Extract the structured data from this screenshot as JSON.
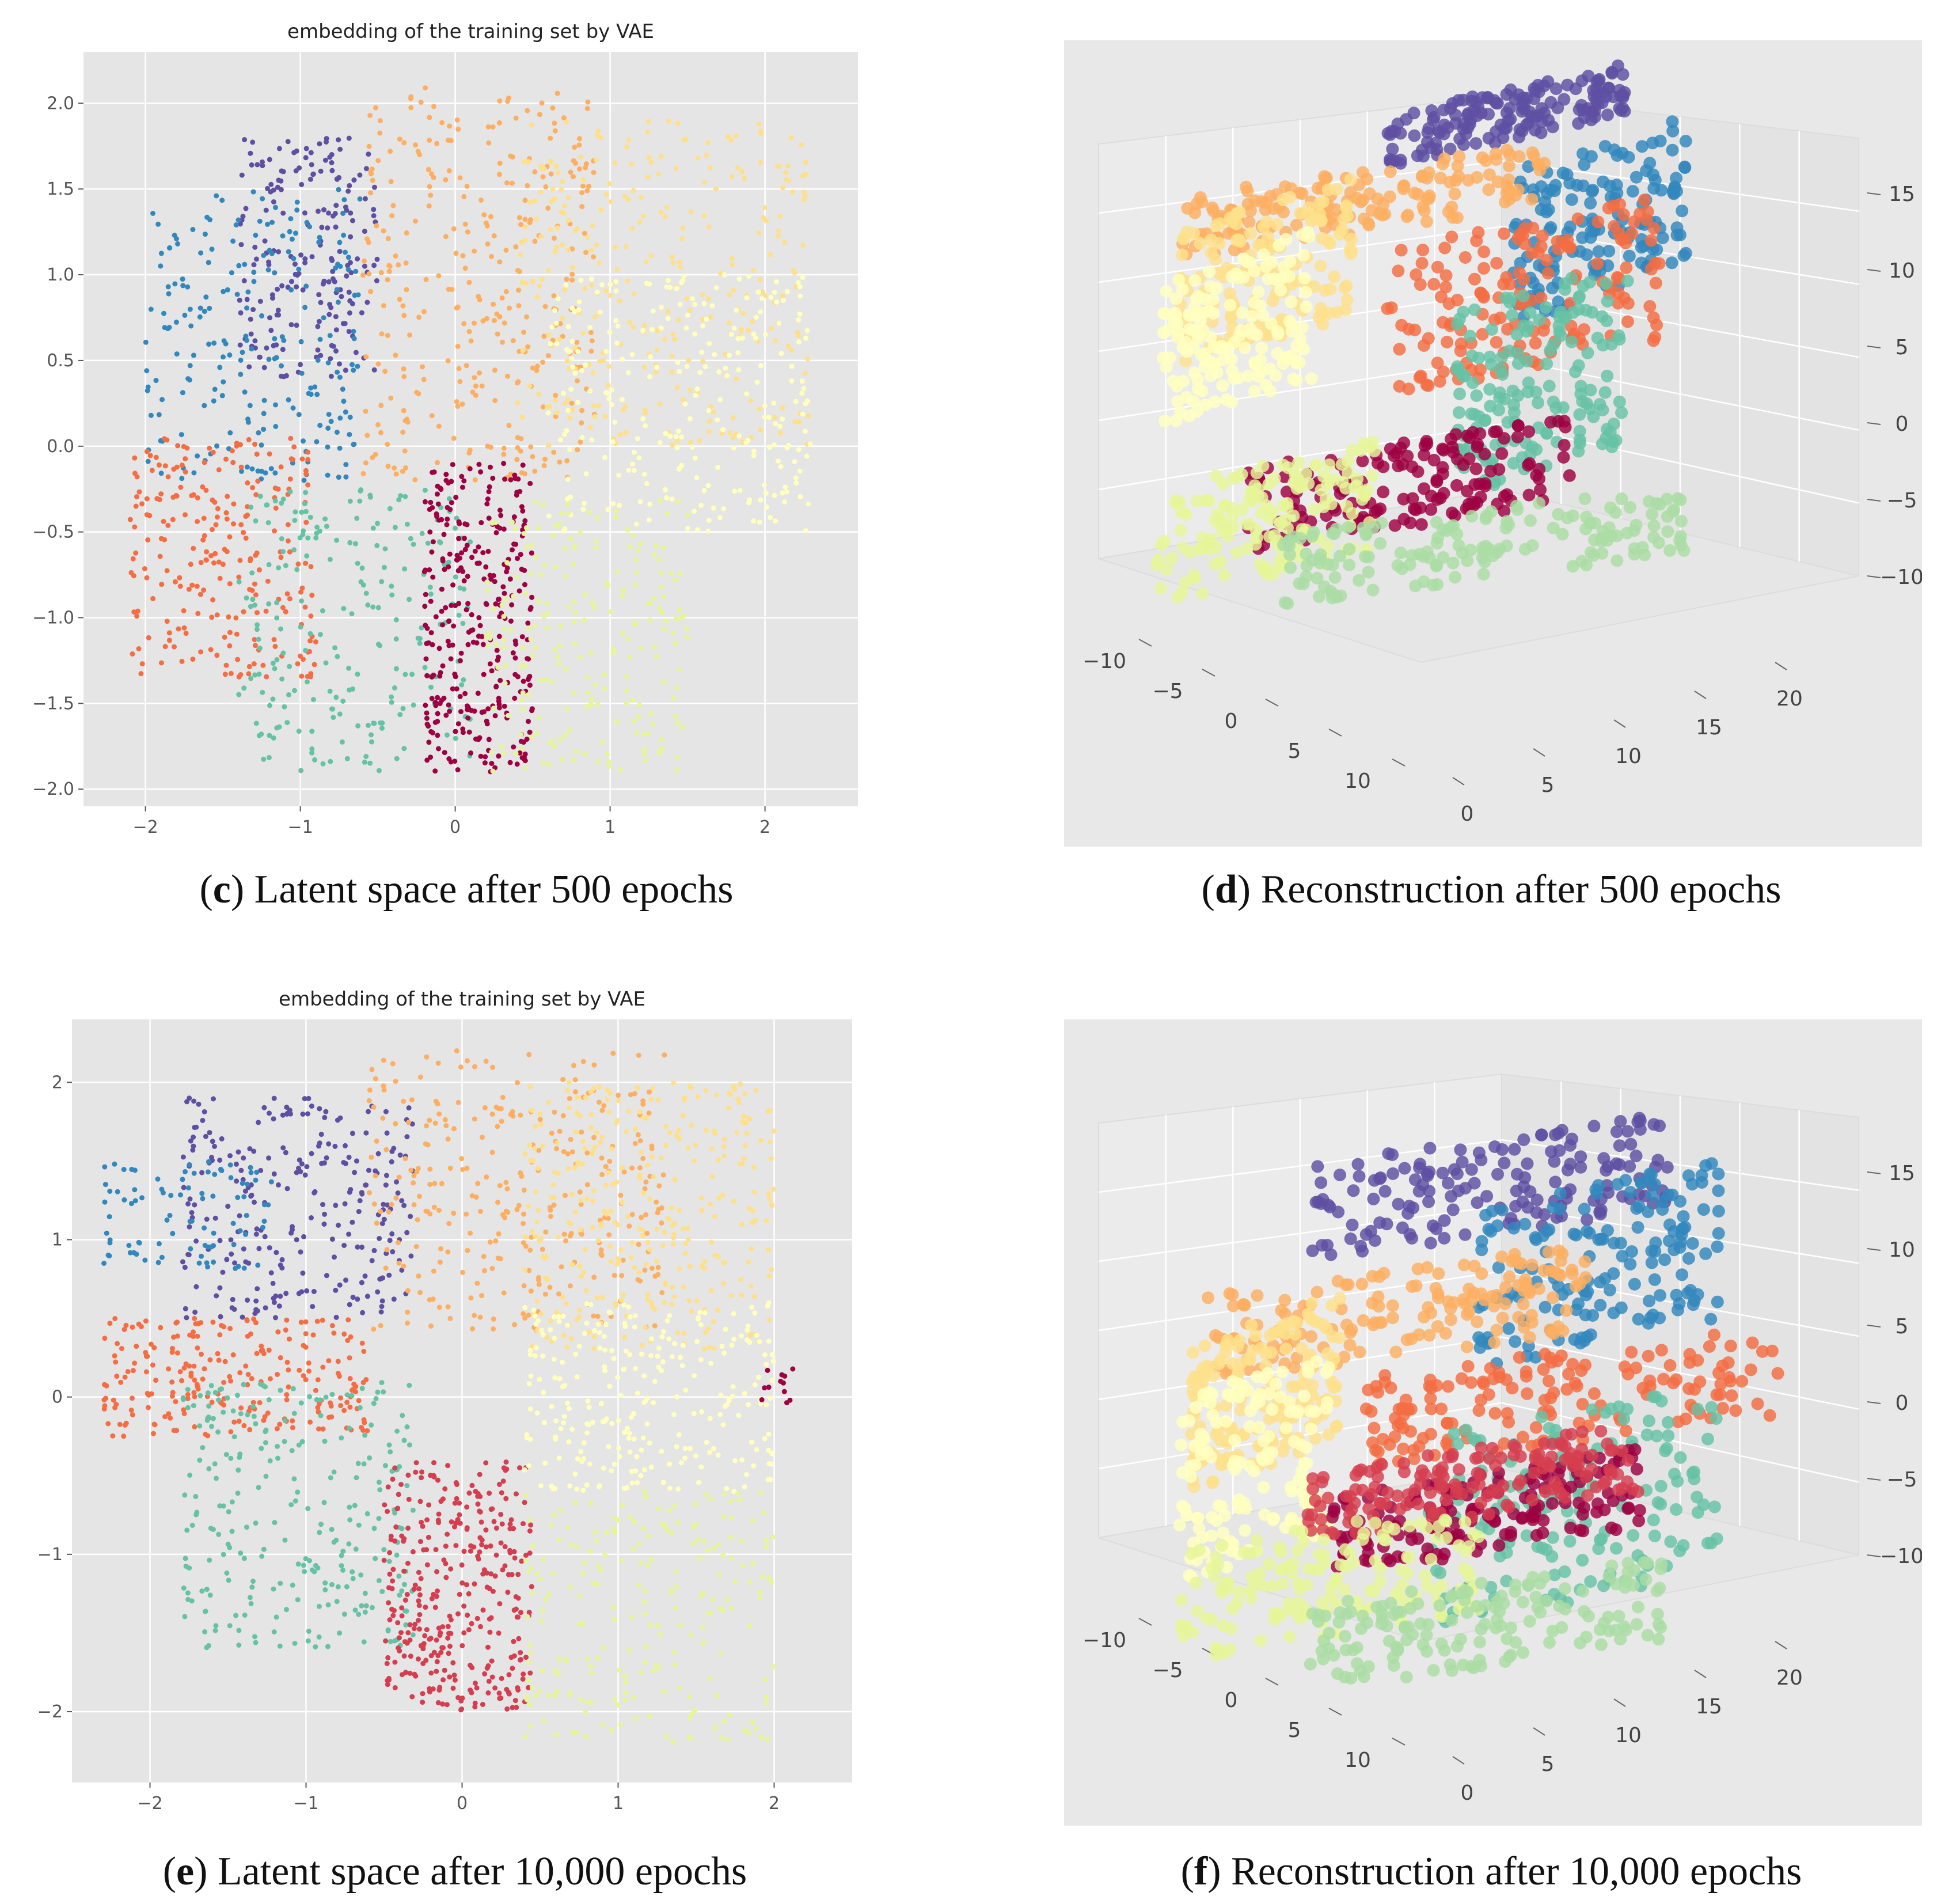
{
  "figure": {
    "panels": [
      {
        "key": "c",
        "text": "Latent space after 500 epochs"
      },
      {
        "key": "d",
        "text": "Reconstruction after 500 epochs"
      },
      {
        "key": "e",
        "text": "Latent space after 10,000 epochs"
      },
      {
        "key": "f",
        "text": "Reconstruction after 10,000 epochs"
      }
    ]
  },
  "colors": {
    "plot_bg": "#e5e5e5",
    "grid": "#ffffff",
    "pane_bg": "#e8e8e8",
    "spectral": [
      "#9e0142",
      "#d53e4f",
      "#f46d43",
      "#fdae61",
      "#fee08b",
      "#ffffbf",
      "#e6f598",
      "#abdda4",
      "#66c2a5",
      "#3288bd",
      "#5e4fa2"
    ]
  },
  "chart_data": [
    {
      "id": "c",
      "type": "scatter",
      "title": "embedding of the training set by VAE",
      "xlim": [
        -2.4,
        2.6
      ],
      "ylim": [
        -2.1,
        2.3
      ],
      "xticks": [
        -2,
        -1,
        0,
        1,
        2
      ],
      "xtick_labels": [
        "−2",
        "−1",
        "0",
        "1",
        "2"
      ],
      "yticks": [
        -2.0,
        -1.5,
        -1.0,
        -0.5,
        0.0,
        0.5,
        1.0,
        1.5,
        2.0
      ],
      "ytick_labels": [
        "−2.0",
        "−1.5",
        "−1.0",
        "−0.5",
        "0.0",
        "0.5",
        "1.0",
        "1.5",
        "2.0"
      ],
      "clusters": [
        {
          "color_index": 10,
          "approx_x": [
            -1.4,
            -0.5
          ],
          "approx_y": [
            0.4,
            1.8
          ],
          "approx_points": 200
        },
        {
          "color_index": 9,
          "approx_x": [
            -2.0,
            -0.6
          ],
          "approx_y": [
            -0.2,
            1.5
          ],
          "approx_points": 220
        },
        {
          "color_index": 3,
          "approx_x": [
            -0.6,
            0.9
          ],
          "approx_y": [
            -0.2,
            2.1
          ],
          "approx_points": 320
        },
        {
          "color_index": 4,
          "approx_x": [
            0.4,
            2.3
          ],
          "approx_y": [
            0.0,
            1.9
          ],
          "approx_points": 300
        },
        {
          "color_index": 5,
          "approx_x": [
            0.6,
            2.3
          ],
          "approx_y": [
            -0.5,
            1.0
          ],
          "approx_points": 260
        },
        {
          "color_index": 2,
          "approx_x": [
            -2.1,
            -0.9
          ],
          "approx_y": [
            -1.35,
            0.05
          ],
          "approx_points": 240
        },
        {
          "color_index": 8,
          "approx_x": [
            -1.4,
            0.1
          ],
          "approx_y": [
            -1.9,
            -0.25
          ],
          "approx_points": 220
        },
        {
          "color_index": 0,
          "approx_x": [
            -0.2,
            0.5
          ],
          "approx_y": [
            -1.9,
            -0.1
          ],
          "approx_points": 320
        },
        {
          "color_index": 6,
          "approx_x": [
            0.2,
            1.5
          ],
          "approx_y": [
            -1.9,
            -0.3
          ],
          "approx_points": 220
        }
      ]
    },
    {
      "id": "d",
      "type": "scatter3d",
      "z_tick_labels": [
        "15",
        "10",
        "5",
        "0",
        "−5",
        "−10"
      ],
      "left_tick_labels": [
        "−10",
        "−5",
        "0",
        "5",
        "10"
      ],
      "right_tick_labels": [
        "0",
        "5",
        "10",
        "15",
        "20"
      ]
    },
    {
      "id": "e",
      "type": "scatter",
      "title": "embedding of the training set by VAE",
      "xlim": [
        -2.5,
        2.5
      ],
      "ylim": [
        -2.45,
        2.4
      ],
      "xticks": [
        -2,
        -1,
        0,
        1,
        2
      ],
      "xtick_labels": [
        "−2",
        "−1",
        "0",
        "1",
        "2"
      ],
      "yticks": [
        -2,
        -1,
        0,
        1,
        2
      ],
      "ytick_labels": [
        "−2",
        "−1",
        "0",
        "1",
        "2"
      ],
      "clusters": [
        {
          "color_index": 10,
          "approx_x": [
            -1.8,
            -0.3
          ],
          "approx_y": [
            0.5,
            1.9
          ],
          "approx_points": 260
        },
        {
          "color_index": 9,
          "approx_x": [
            -2.3,
            -1.2
          ],
          "approx_y": [
            0.8,
            1.5
          ],
          "approx_points": 90
        },
        {
          "color_index": 2,
          "approx_x": [
            -2.3,
            -0.6
          ],
          "approx_y": [
            -0.25,
            0.5
          ],
          "approx_points": 240
        },
        {
          "color_index": 8,
          "approx_x": [
            -1.8,
            -0.3
          ],
          "approx_y": [
            -1.6,
            0.1
          ],
          "approx_points": 260
        },
        {
          "color_index": 1,
          "approx_x": [
            -0.5,
            0.45
          ],
          "approx_y": [
            -2.0,
            -0.4
          ],
          "approx_points": 340
        },
        {
          "color_index": 3,
          "approx_x": [
            -0.6,
            1.3
          ],
          "approx_y": [
            0.4,
            2.2
          ],
          "approx_points": 300
        },
        {
          "color_index": 4,
          "approx_x": [
            0.4,
            2.0
          ],
          "approx_y": [
            0.3,
            2.0
          ],
          "approx_points": 320
        },
        {
          "color_index": 5,
          "approx_x": [
            0.4,
            2.0
          ],
          "approx_y": [
            -0.6,
            0.6
          ],
          "approx_points": 260
        },
        {
          "color_index": 6,
          "approx_x": [
            0.4,
            2.0
          ],
          "approx_y": [
            -2.2,
            -0.6
          ],
          "approx_points": 220
        },
        {
          "color_index": 0,
          "approx_x": [
            1.9,
            2.2
          ],
          "approx_y": [
            -0.05,
            0.2
          ],
          "approx_points": 12
        }
      ]
    },
    {
      "id": "f",
      "type": "scatter3d",
      "z_tick_labels": [
        "15",
        "10",
        "5",
        "0",
        "−5",
        "−10"
      ],
      "left_tick_labels": [
        "−10",
        "−5",
        "0",
        "5",
        "10"
      ],
      "right_tick_labels": [
        "0",
        "5",
        "10",
        "15",
        "20"
      ]
    }
  ]
}
